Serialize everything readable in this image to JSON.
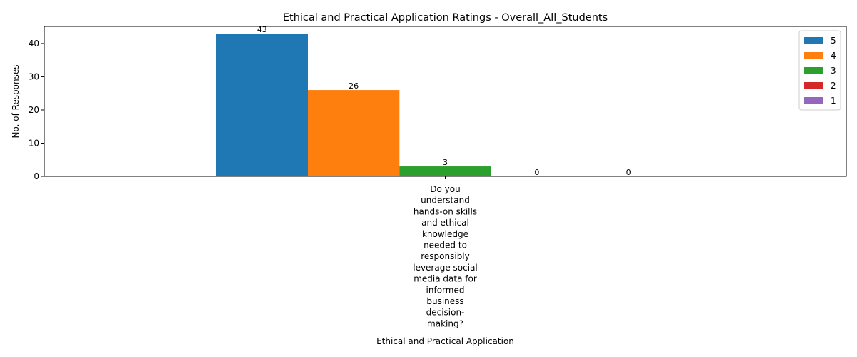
{
  "chart_data": {
    "type": "bar",
    "title": "Ethical and Practical Application Ratings - Overall_All_Students",
    "xlabel": "Ethical and Practical Application",
    "ylabel": "No. of Responses",
    "categories": [
      "Do you understand hands-on skills and ethical knowledge needed to responsibly leverage social media data for informed business decision-making?"
    ],
    "category_label_lines": [
      "Do you",
      "understand",
      "hands-on skills",
      "and ethical",
      "knowledge",
      "needed to",
      "responsibly",
      "leverage social",
      "media data for",
      "informed",
      "business",
      "decision-",
      "making?"
    ],
    "series": [
      {
        "name": "5",
        "values": [
          43
        ],
        "color": "#1f77b4"
      },
      {
        "name": "4",
        "values": [
          26
        ],
        "color": "#ff7f0e"
      },
      {
        "name": "3",
        "values": [
          3
        ],
        "color": "#2ca02c"
      },
      {
        "name": "2",
        "values": [
          0
        ],
        "color": "#d62728"
      },
      {
        "name": "1",
        "values": [
          0
        ],
        "color": "#9467bd"
      }
    ],
    "ylim": [
      0,
      45.15
    ],
    "yticks": [
      0,
      10,
      20,
      30,
      40
    ],
    "grid": false,
    "legend_position": "upper right"
  }
}
